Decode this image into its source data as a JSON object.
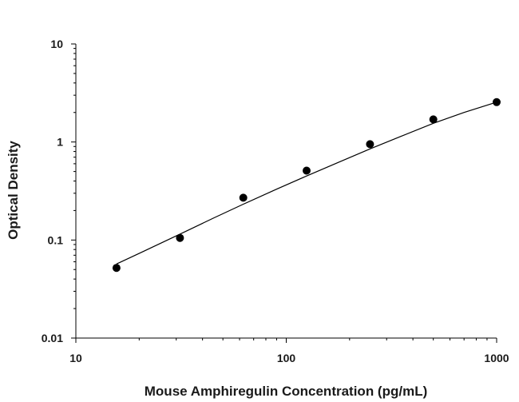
{
  "chart_data": {
    "type": "scatter",
    "title": "",
    "xlabel": "Mouse Amphiregulin Concentration (pg/mL)",
    "ylabel": "Optical Density",
    "xscale": "log",
    "yscale": "log",
    "xlim": [
      10,
      1000
    ],
    "ylim": [
      0.01,
      10
    ],
    "xticks": [
      10,
      100,
      1000
    ],
    "xtick_labels": [
      "10",
      "100",
      "1000"
    ],
    "yticks": [
      0.01,
      0.1,
      1,
      10
    ],
    "ytick_labels": [
      "0.01",
      "0.1",
      "1",
      "10"
    ],
    "grid": false,
    "legend": "none",
    "series": [
      {
        "x": [
          15.6,
          31.25,
          62.5,
          125,
          250,
          500,
          1000
        ],
        "y": [
          0.052,
          0.105,
          0.27,
          0.51,
          0.95,
          1.7,
          2.55
        ]
      }
    ],
    "fit_curve": {
      "x": [
        15.6,
        20,
        31.25,
        45,
        62.5,
        90,
        125,
        180,
        250,
        350,
        500,
        700,
        1000
      ],
      "y": [
        0.057,
        0.073,
        0.115,
        0.167,
        0.232,
        0.33,
        0.45,
        0.63,
        0.85,
        1.14,
        1.55,
        2.0,
        2.55
      ]
    },
    "colors": {
      "marker": "#000000",
      "line": "#000000",
      "axis": "#000000"
    }
  }
}
